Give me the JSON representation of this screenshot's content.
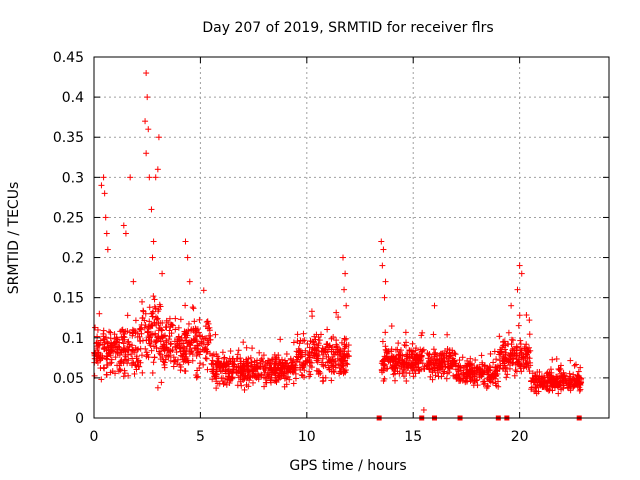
{
  "chart_data": {
    "type": "scatter",
    "title": "Day 207 of 2019, SRMTID for receiver flrs",
    "xlabel": "GPS time / hours",
    "ylabel": "SRMTID / TECUs",
    "xlim": [
      0,
      24.2
    ],
    "ylim": [
      0,
      0.45
    ],
    "x_ticks": [
      "0",
      "5",
      "10",
      "15",
      "20"
    ],
    "x_tick_values": [
      0,
      5,
      10,
      15,
      20
    ],
    "y_ticks": [
      "0",
      "0.05",
      "0.1",
      "0.15",
      "0.2",
      "0.25",
      "0.3",
      "0.35",
      "0.4",
      "0.45"
    ],
    "y_tick_values": [
      0,
      0.05,
      0.1,
      0.15,
      0.2,
      0.25,
      0.3,
      0.35,
      0.4,
      0.45
    ],
    "grid": true,
    "marker": "+",
    "color": "#ff0000",
    "series": [
      {
        "name": "SRMTID",
        "segments": [
          {
            "x_start": 0.0,
            "x_end": 2.2,
            "mean": 0.085,
            "spread": 0.05
          },
          {
            "x_start": 2.2,
            "x_end": 3.2,
            "mean": 0.1,
            "spread": 0.07
          },
          {
            "x_start": 3.2,
            "x_end": 5.5,
            "mean": 0.09,
            "spread": 0.05
          },
          {
            "x_start": 5.5,
            "x_end": 9.5,
            "mean": 0.06,
            "spread": 0.03
          },
          {
            "x_start": 9.5,
            "x_end": 12.0,
            "mean": 0.075,
            "spread": 0.04
          },
          {
            "x_start": 13.5,
            "x_end": 17.0,
            "mean": 0.07,
            "spread": 0.03
          },
          {
            "x_start": 17.0,
            "x_end": 19.0,
            "mean": 0.055,
            "spread": 0.025
          },
          {
            "x_start": 19.0,
            "x_end": 20.5,
            "mean": 0.075,
            "spread": 0.035
          },
          {
            "x_start": 20.5,
            "x_end": 22.9,
            "mean": 0.045,
            "spread": 0.02
          }
        ],
        "highlights": [
          {
            "x": 0.25,
            "y": 0.13
          },
          {
            "x": 0.35,
            "y": 0.29
          },
          {
            "x": 0.45,
            "y": 0.3
          },
          {
            "x": 0.5,
            "y": 0.28
          },
          {
            "x": 0.55,
            "y": 0.25
          },
          {
            "x": 0.6,
            "y": 0.23
          },
          {
            "x": 0.65,
            "y": 0.21
          },
          {
            "x": 1.4,
            "y": 0.24
          },
          {
            "x": 1.5,
            "y": 0.23
          },
          {
            "x": 1.7,
            "y": 0.3
          },
          {
            "x": 1.85,
            "y": 0.17
          },
          {
            "x": 2.45,
            "y": 0.43
          },
          {
            "x": 2.5,
            "y": 0.4
          },
          {
            "x": 2.4,
            "y": 0.37
          },
          {
            "x": 2.55,
            "y": 0.36
          },
          {
            "x": 2.45,
            "y": 0.33
          },
          {
            "x": 2.6,
            "y": 0.3
          },
          {
            "x": 2.7,
            "y": 0.26
          },
          {
            "x": 2.8,
            "y": 0.22
          },
          {
            "x": 2.9,
            "y": 0.3
          },
          {
            "x": 3.0,
            "y": 0.31
          },
          {
            "x": 3.05,
            "y": 0.35
          },
          {
            "x": 2.75,
            "y": 0.2
          },
          {
            "x": 3.2,
            "y": 0.18
          },
          {
            "x": 4.3,
            "y": 0.22
          },
          {
            "x": 4.4,
            "y": 0.2
          },
          {
            "x": 4.5,
            "y": 0.17
          },
          {
            "x": 11.7,
            "y": 0.2
          },
          {
            "x": 11.8,
            "y": 0.18
          },
          {
            "x": 11.75,
            "y": 0.16
          },
          {
            "x": 11.85,
            "y": 0.14
          },
          {
            "x": 13.5,
            "y": 0.22
          },
          {
            "x": 13.6,
            "y": 0.21
          },
          {
            "x": 13.55,
            "y": 0.19
          },
          {
            "x": 13.7,
            "y": 0.17
          },
          {
            "x": 13.65,
            "y": 0.15
          },
          {
            "x": 16.0,
            "y": 0.14
          },
          {
            "x": 20.0,
            "y": 0.19
          },
          {
            "x": 20.1,
            "y": 0.18
          },
          {
            "x": 19.9,
            "y": 0.16
          },
          {
            "x": 19.6,
            "y": 0.14
          },
          {
            "x": 15.5,
            "y": 0.01
          }
        ],
        "zero_markers": [
          13.4,
          15.4,
          16.0,
          17.2,
          19.0,
          19.4,
          22.8
        ]
      }
    ]
  }
}
